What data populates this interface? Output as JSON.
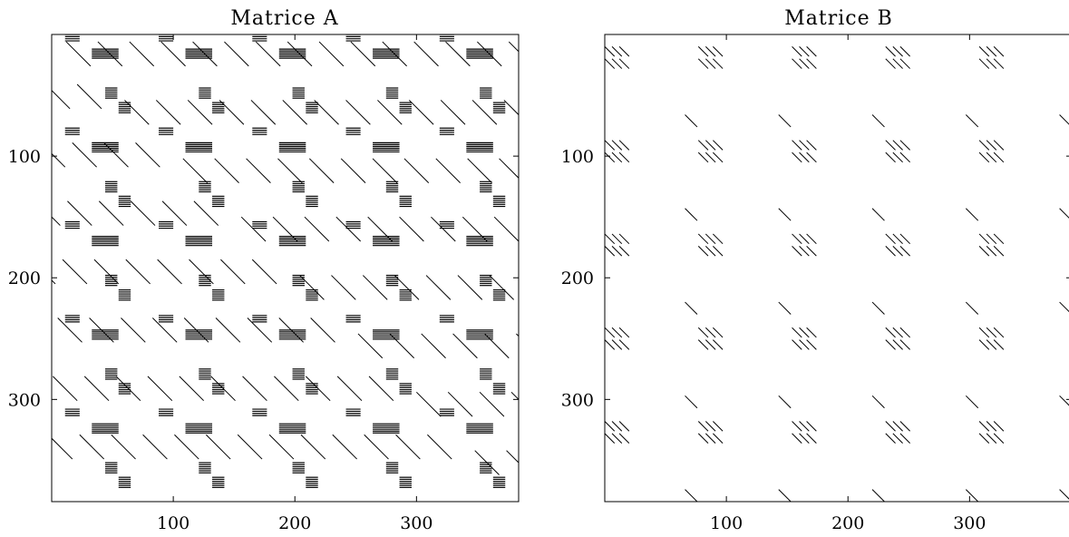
{
  "chart_data": [
    {
      "type": "heatmap",
      "title": "Matrice A",
      "description": "sparsity pattern",
      "xlim": [
        0,
        384
      ],
      "ylim": [
        384,
        0
      ],
      "xticks": [
        100,
        200,
        300
      ],
      "yticks": [
        100,
        200,
        300
      ],
      "block_period": 77,
      "block_row_offsets": [
        0,
        7,
        43,
        50
      ],
      "block_col_offsets": [
        13,
        44,
        51
      ],
      "block_size": 10,
      "diagonal_spacing": 26
    },
    {
      "type": "heatmap",
      "title": "Matrice B",
      "description": "sparsity pattern",
      "xlim": [
        0,
        384
      ],
      "ylim": [
        384,
        0
      ],
      "xticks": [
        100,
        200,
        300
      ],
      "yticks": [
        100,
        200,
        300
      ],
      "block_period": 77,
      "diagonal_spacing": 77
    }
  ]
}
